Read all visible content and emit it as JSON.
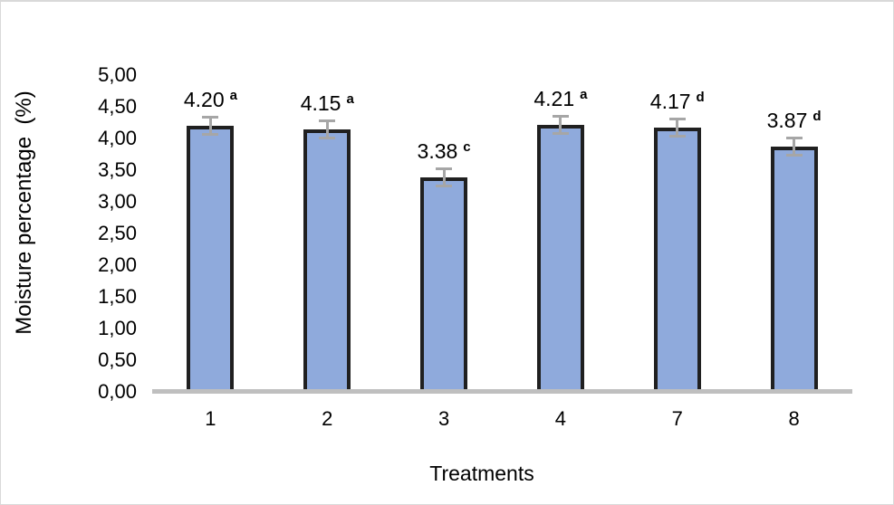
{
  "chart_data": {
    "type": "bar",
    "title": "",
    "xlabel": "Treatments",
    "ylabel": "Moisture percentage  (%)",
    "categories": [
      "1",
      "2",
      "3",
      "4",
      "7",
      "8"
    ],
    "values": [
      4.2,
      4.15,
      3.38,
      4.21,
      4.17,
      3.87
    ],
    "value_labels": [
      "4.20",
      "4.15",
      "3.38",
      "4.21",
      "4.17",
      "3.87"
    ],
    "superscripts": [
      "a",
      "a",
      "c",
      "a",
      "d",
      "d"
    ],
    "error_bars": [
      0.15,
      0.15,
      0.15,
      0.15,
      0.15,
      0.15
    ],
    "ylim": [
      0,
      5
    ],
    "ytick_step": 0.5,
    "ytick_labels": [
      "0,00",
      "0,50",
      "1,00",
      "1,50",
      "2,00",
      "2,50",
      "3,00",
      "3,50",
      "4,00",
      "4,50",
      "5,00"
    ],
    "grid": false,
    "legend": null,
    "decimal_separator_axis": "comma",
    "decimal_separator_labels": "period",
    "colors": {
      "bar_fill": "#8FAADC",
      "bar_border": "#202020",
      "error_bar": "#A6A6A6",
      "axis_line": "#BFBFBF",
      "chart_border": "#D9D9D9",
      "text": "#000000"
    }
  }
}
